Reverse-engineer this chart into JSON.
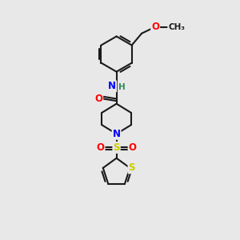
{
  "bg_color": "#e8e8e8",
  "bond_color": "#1a1a1a",
  "bond_width": 1.5,
  "atom_colors": {
    "O": "#ff0000",
    "N": "#0000ff",
    "S": "#cccc00",
    "H_label": "#2e8b57",
    "C": "#1a1a1a"
  },
  "font_size": 8.5,
  "fig_size": [
    3.0,
    3.0
  ],
  "dpi": 100
}
